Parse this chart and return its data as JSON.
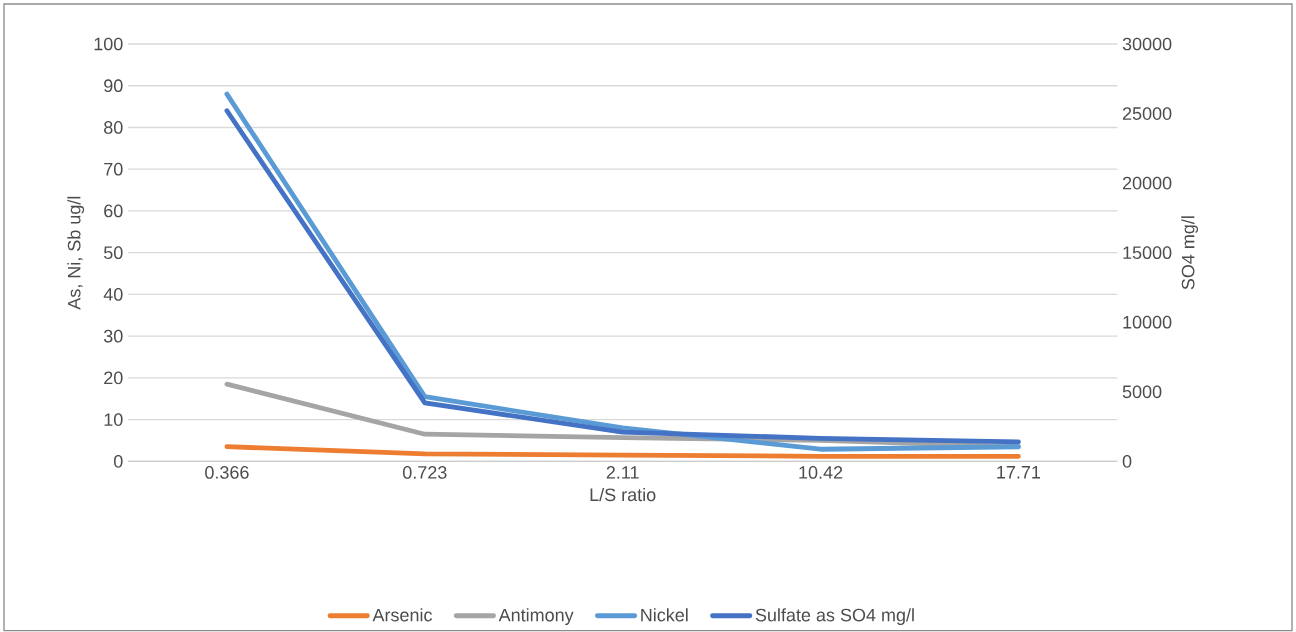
{
  "chart_data": {
    "type": "line",
    "xlabel": "L/S ratio",
    "ylabel": "As, Ni, Sb ug/l",
    "y2label": "SO4 mg/l",
    "categories": [
      "0.366",
      "0.723",
      "2.11",
      "10.42",
      "17.71"
    ],
    "series": [
      {
        "name": "Arsenic",
        "color": "#ed7d31",
        "values": [
          3.5,
          1.8,
          1.5,
          1.2,
          1.2
        ]
      },
      {
        "name": "Antimony",
        "color": "#a5a5a5",
        "values": [
          18.5,
          6.5,
          5.7,
          5,
          3.5
        ]
      },
      {
        "name": "Nickel",
        "color": "#5b9bd5",
        "values": [
          88,
          15.5,
          8,
          2.9,
          3.5
        ]
      },
      {
        "name": "Sulfate as SO4 mg/l",
        "color": "#4472c4",
        "axis": "y2",
        "values": [
          25200,
          4200,
          2100,
          1650,
          1400
        ]
      }
    ],
    "ylim": [
      0,
      100
    ],
    "yticks": [
      0,
      10,
      20,
      30,
      40,
      50,
      60,
      70,
      80,
      90,
      100
    ],
    "y2lim": [
      0,
      30000
    ],
    "y2ticks": [
      0,
      5000,
      10000,
      15000,
      20000,
      25000,
      30000
    ],
    "grid": "y",
    "legend": "bottom",
    "marker": "none",
    "line_style": "solid"
  }
}
